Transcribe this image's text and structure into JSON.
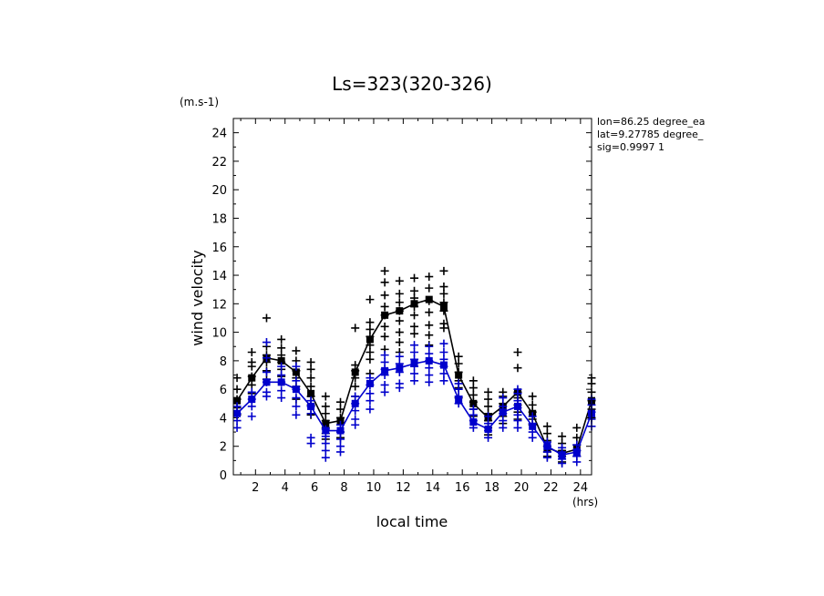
{
  "chart_data": {
    "type": "scatter",
    "title": "Ls=323(320-326)",
    "xlabel": "local time",
    "ylabel": "wind velocity",
    "x_unit": "(hrs)",
    "y_unit": "(m.s-1)",
    "xlim": [
      0.5,
      24.75
    ],
    "ylim": [
      0,
      25
    ],
    "x_ticks": [
      "2",
      "4",
      "6",
      "8",
      "10",
      "12",
      "14",
      "16",
      "18",
      "20",
      "22",
      "24"
    ],
    "y_ticks": [
      "0",
      "2",
      "4",
      "6",
      "8",
      "10",
      "12",
      "14",
      "16",
      "18",
      "20",
      "22",
      "24"
    ],
    "info_lines": [
      "lon=86.25 degree_ea",
      "lat=9.27785 degree_",
      "sig=0.9997 1"
    ],
    "grid": false,
    "colors": {
      "series_1": "#000000",
      "series_2": "#0000cc"
    },
    "x": [
      0.75,
      1.75,
      2.75,
      3.75,
      4.75,
      5.75,
      6.75,
      7.75,
      8.75,
      9.75,
      10.75,
      11.75,
      12.75,
      13.75,
      14.75,
      15.75,
      16.75,
      17.75,
      18.75,
      19.75,
      20.75,
      21.75,
      22.75,
      23.75,
      24.75
    ],
    "series": [
      {
        "color": "#000000",
        "mean": [
          5.2,
          6.8,
          8.2,
          8.0,
          7.2,
          5.7,
          3.6,
          3.8,
          7.2,
          9.5,
          11.2,
          11.5,
          12.0,
          12.3,
          11.8,
          7.0,
          5.0,
          4.0,
          4.8,
          5.8,
          4.3,
          1.9,
          1.5,
          1.8,
          5.2
        ],
        "scatter": [
          [
            4.2,
            4.7,
            5.3,
            6.0,
            6.8
          ],
          [
            5.7,
            6.3,
            6.9,
            7.6,
            7.9,
            8.6
          ],
          [
            6.7,
            7.3,
            7.9,
            8.4,
            9.0,
            11.0
          ],
          [
            6.9,
            7.4,
            7.9,
            8.4,
            8.9,
            9.5
          ],
          [
            5.3,
            6.2,
            6.8,
            7.3,
            8.0,
            8.7
          ],
          [
            4.2,
            4.9,
            5.5,
            6.2,
            6.8,
            7.4,
            7.9
          ],
          [
            2.5,
            2.9,
            3.3,
            3.8,
            4.3,
            4.8,
            5.5
          ],
          [
            2.6,
            3.0,
            3.5,
            4.0,
            4.6,
            5.1
          ],
          [
            5.5,
            6.2,
            6.8,
            7.3,
            7.7,
            10.3
          ],
          [
            7.1,
            8.1,
            8.6,
            9.1,
            9.7,
            10.2,
            10.7,
            12.3
          ],
          [
            8.8,
            9.7,
            10.4,
            11.2,
            11.8,
            12.6,
            13.5,
            14.3
          ],
          [
            8.6,
            9.3,
            10.0,
            10.8,
            11.5,
            12.1,
            12.7,
            13.6
          ],
          [
            9.9,
            10.4,
            11.2,
            11.8,
            12.4,
            12.9,
            13.8
          ],
          [
            9.1,
            9.8,
            10.5,
            11.4,
            12.2,
            13.1,
            13.9
          ],
          [
            10.3,
            10.6,
            11.5,
            12.1,
            12.7,
            13.2,
            14.3
          ],
          [
            5.4,
            6.1,
            6.6,
            7.2,
            7.8,
            8.3
          ],
          [
            4.1,
            4.6,
            5.1,
            5.6,
            6.1,
            6.6
          ],
          [
            2.8,
            3.3,
            3.8,
            4.3,
            4.8,
            5.3,
            5.8
          ],
          [
            3.6,
            4.1,
            4.5,
            5.0,
            5.5,
            5.8
          ],
          [
            3.9,
            4.4,
            4.9,
            5.4,
            5.8,
            7.5,
            8.6
          ],
          [
            3.5,
            3.9,
            4.4,
            4.9,
            5.5
          ],
          [
            1.3,
            1.6,
            2.0,
            2.4,
            2.9,
            3.4
          ],
          [
            0.9,
            1.3,
            1.7,
            2.2,
            2.7
          ],
          [
            1.3,
            1.7,
            2.1,
            2.6,
            3.3
          ],
          [
            4.0,
            4.6,
            5.2,
            5.8,
            6.4,
            6.8
          ]
        ]
      },
      {
        "color": "#0000cc",
        "mean": [
          4.3,
          5.3,
          6.5,
          6.5,
          6.0,
          4.8,
          3.1,
          3.1,
          5.0,
          6.4,
          7.3,
          7.5,
          7.8,
          8.0,
          7.7,
          5.3,
          3.7,
          3.2,
          4.4,
          4.8,
          3.4,
          2.0,
          1.4,
          1.6,
          4.3
        ],
        "scatter": [
          [
            3.3,
            3.8,
            4.3,
            4.8
          ],
          [
            4.1,
            4.8,
            5.3,
            5.8
          ],
          [
            5.5,
            5.8,
            6.5,
            7.2,
            8.2,
            9.3
          ],
          [
            5.4,
            5.9,
            6.5,
            7.0,
            7.6
          ],
          [
            4.2,
            4.8,
            5.4,
            6.0,
            6.6,
            7.6
          ],
          [
            2.2,
            2.6,
            4.3,
            4.8,
            5.2
          ],
          [
            1.2,
            1.7,
            2.2,
            2.7,
            3.2
          ],
          [
            1.6,
            2.0,
            2.5,
            3.0,
            3.5
          ],
          [
            3.5,
            3.9,
            4.5,
            5.0,
            5.5
          ],
          [
            4.6,
            5.2,
            5.7,
            6.3,
            6.8
          ],
          [
            5.8,
            6.3,
            7.0,
            7.4,
            7.9,
            8.4
          ],
          [
            6.1,
            6.4,
            7.2,
            7.8,
            8.3
          ],
          [
            6.6,
            7.1,
            7.6,
            8.1,
            8.6,
            9.1
          ],
          [
            6.5,
            7.0,
            7.5,
            8.0,
            8.5,
            9.0
          ],
          [
            6.6,
            7.1,
            7.6,
            8.1,
            8.6,
            9.2
          ],
          [
            5.0,
            5.5,
            6.0,
            6.4
          ],
          [
            3.3,
            3.8,
            4.2,
            4.6
          ],
          [
            2.6,
            3.1,
            3.6,
            4.1
          ],
          [
            3.3,
            3.8,
            4.3,
            4.8,
            5.4
          ],
          [
            3.3,
            3.8,
            4.2,
            4.7,
            5.2,
            5.7,
            6.0
          ],
          [
            2.6,
            3.0,
            3.6,
            4.1
          ],
          [
            1.2,
            1.6,
            2.0,
            2.3
          ],
          [
            0.8,
            1.1,
            1.5,
            1.9
          ],
          [
            0.9,
            1.3,
            1.7,
            2.1
          ],
          [
            3.4,
            3.9,
            4.4,
            4.9,
            5.3
          ]
        ]
      }
    ]
  }
}
